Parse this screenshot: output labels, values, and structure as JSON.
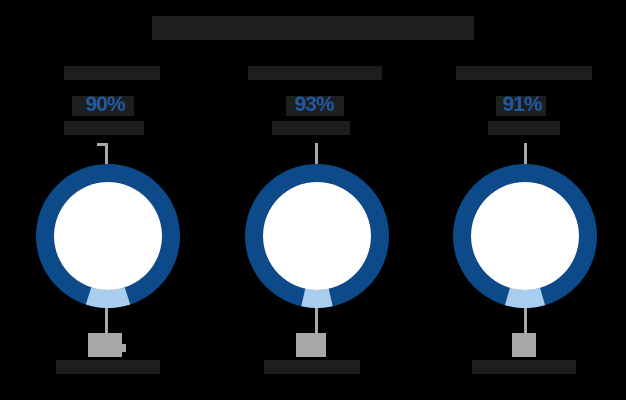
{
  "chart_data": {
    "type": "pie",
    "variant": "donut",
    "title": "",
    "title_redacted": true,
    "series": [
      {
        "name": "",
        "name_redacted": true,
        "values": [
          90,
          10
        ],
        "labels": [
          "90%",
          ""
        ],
        "colors": [
          "#0c4a8a",
          "#a9cdef"
        ]
      },
      {
        "name": "",
        "name_redacted": true,
        "values": [
          93,
          7
        ],
        "labels": [
          "93%",
          ""
        ],
        "colors": [
          "#0c4a8a",
          "#a9cdef"
        ]
      },
      {
        "name": "",
        "name_redacted": true,
        "values": [
          91,
          9
        ],
        "labels": [
          "91%",
          ""
        ],
        "colors": [
          "#0c4a8a",
          "#a9cdef"
        ]
      }
    ],
    "legend": "none"
  },
  "colors": {
    "background": "#000000",
    "primary_segment": "#0c4a8a",
    "secondary_segment": "#a9cdef",
    "inner": "#ffffff",
    "leader": "#a8a8a8",
    "redaction": "#1d1e1f",
    "percent_text": "#1f5aa3"
  },
  "panels": [
    {
      "percent_label": "90%",
      "value": 90
    },
    {
      "percent_label": "93%",
      "value": 93
    },
    {
      "percent_label": "91%",
      "value": 91
    }
  ]
}
